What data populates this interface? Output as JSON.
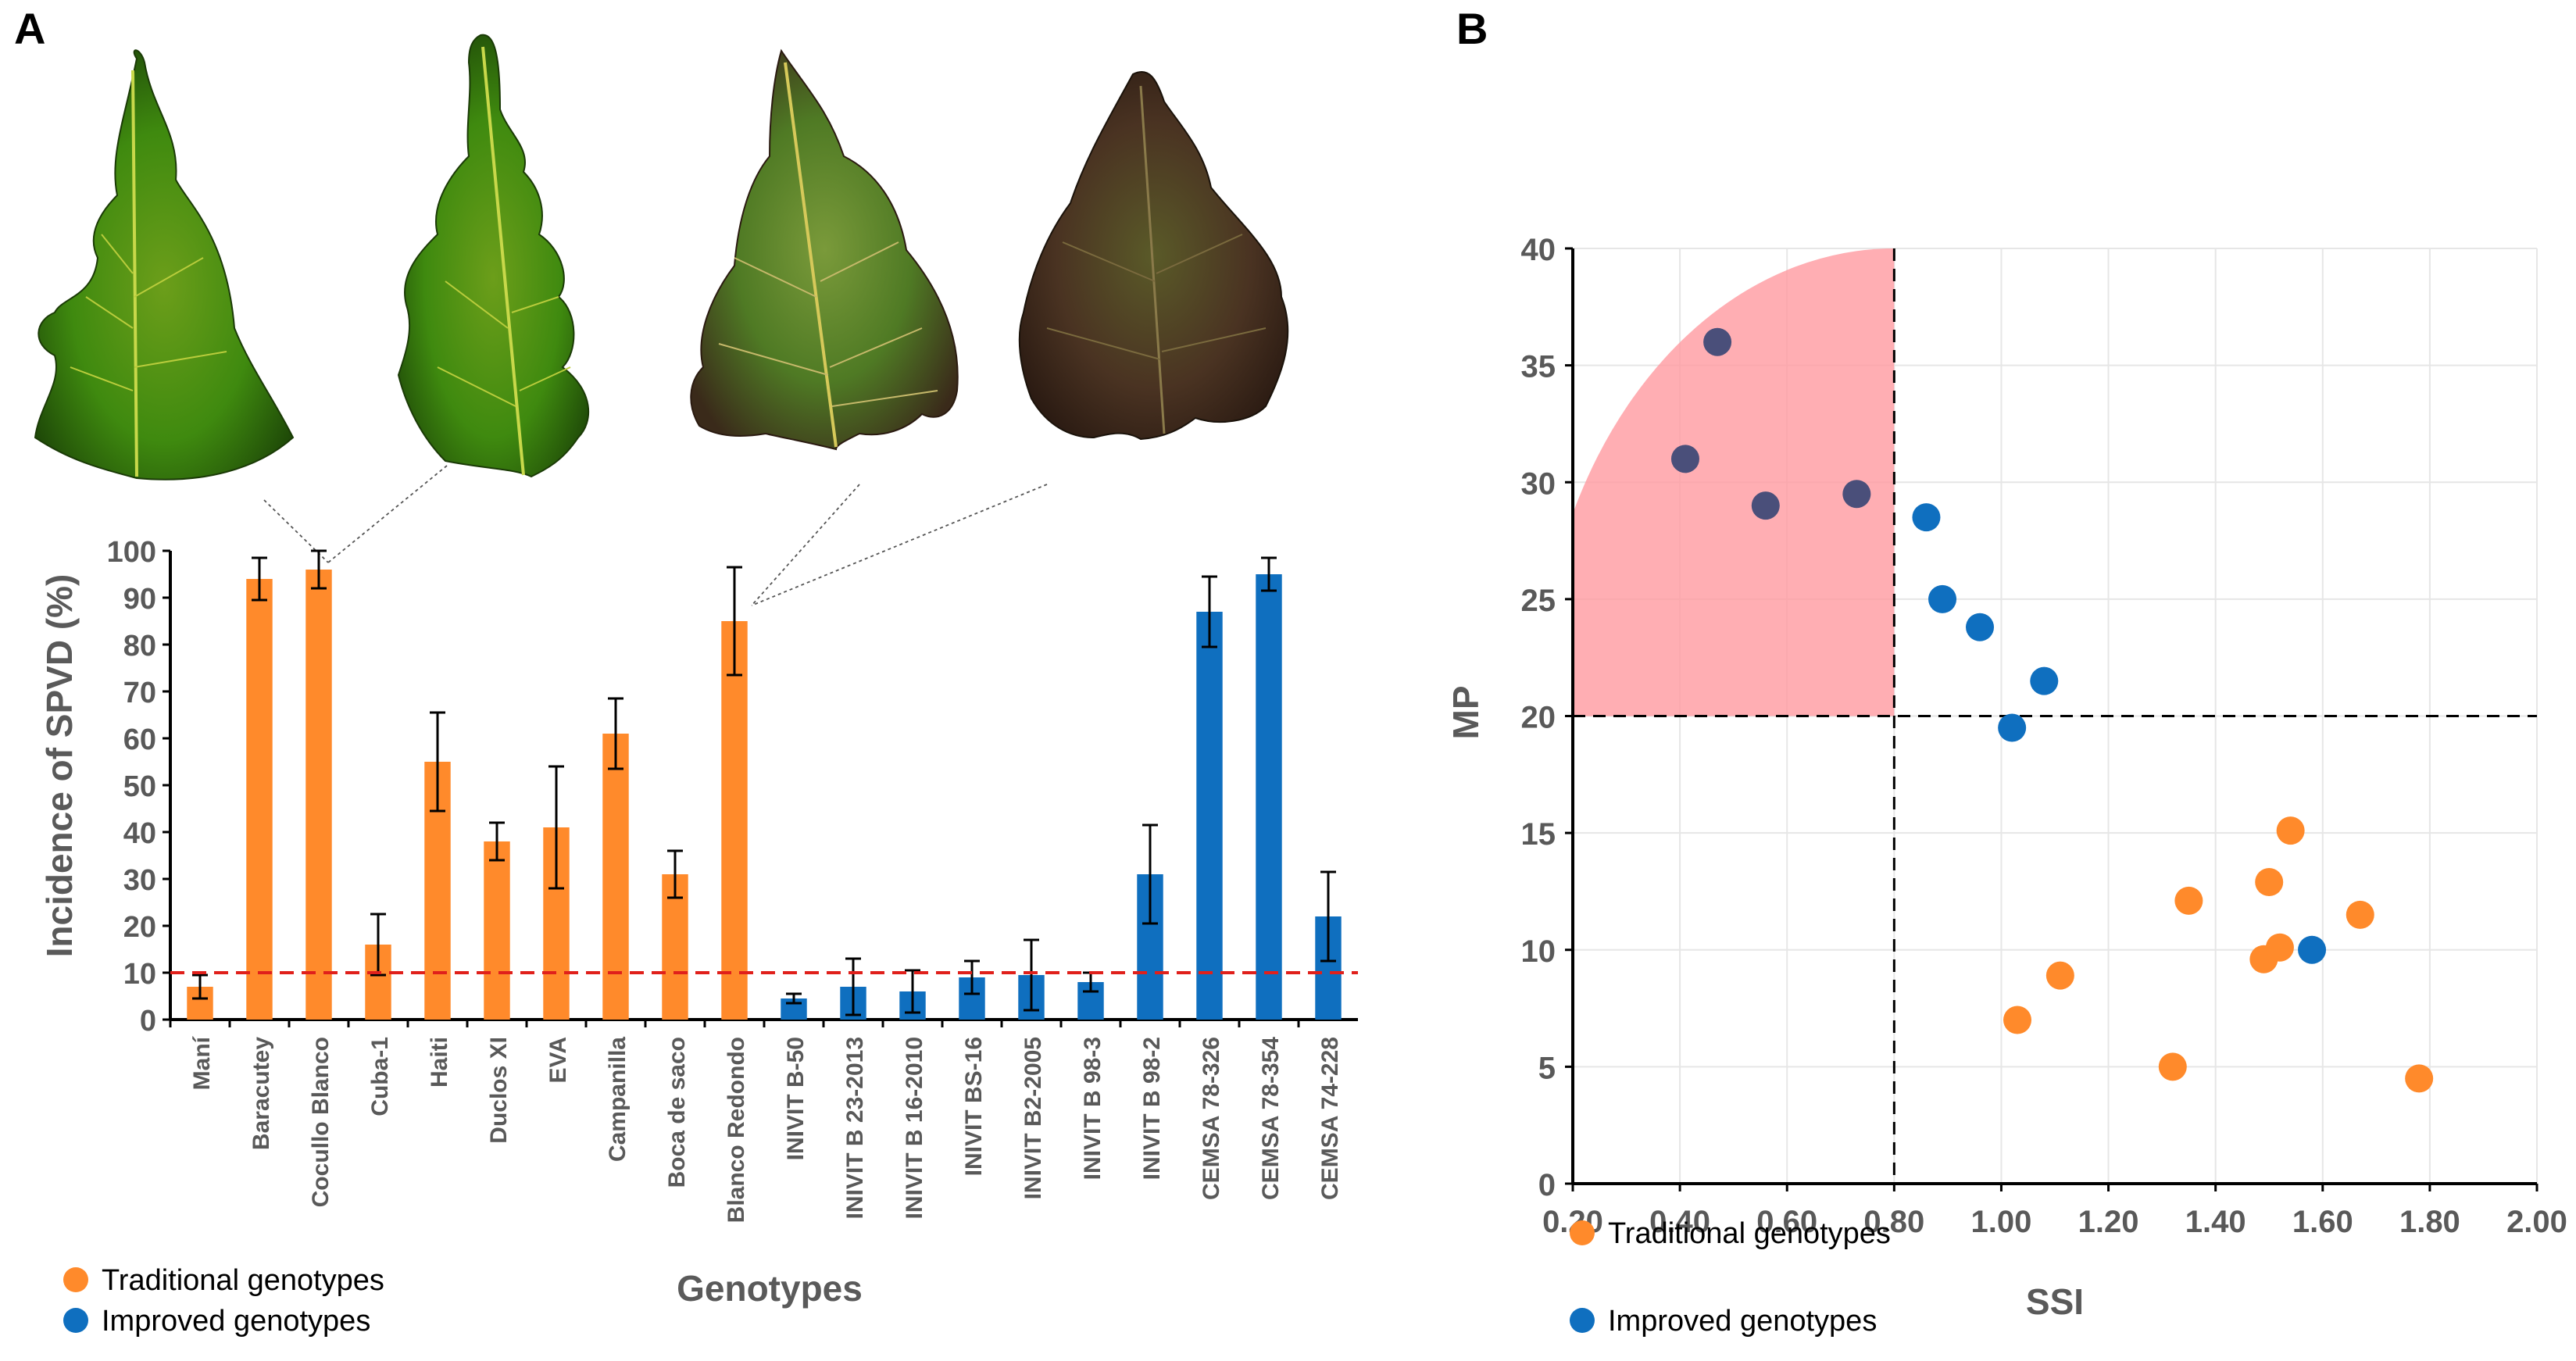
{
  "panels": {
    "a_label": "A",
    "b_label": "B"
  },
  "colors": {
    "traditional": "#FF8A2B",
    "improved": "#0F6FBF",
    "threshold": "#E0201B",
    "shade": "#FF9AA0",
    "highlight_dot": "#4A4F7A"
  },
  "legend": {
    "traditional": "Traditional genotypes",
    "improved": "Improved genotypes"
  },
  "leaf_photos": [
    "leaf-photo-cocullo-blanco-1",
    "leaf-photo-cocullo-blanco-2",
    "leaf-photo-blanco-redondo-1",
    "leaf-photo-blanco-redondo-2"
  ],
  "chart_data": [
    {
      "type": "bar",
      "panel": "A",
      "ylabel": "Incidence of SPVD (%)",
      "xlabel": "Genotypes",
      "ylim": [
        0,
        100
      ],
      "yticks": [
        0,
        10,
        20,
        30,
        40,
        50,
        60,
        70,
        80,
        90,
        100
      ],
      "threshold": 10,
      "categories": [
        "Maní",
        "Baracutey",
        "Cocullo Blanco",
        "Cuba-1",
        "Haiti",
        "Duclos XI",
        "EVA",
        "Campanilla",
        "Boca de saco",
        "Blanco Redondo",
        "INIVIT B-50",
        "INIVIT B 23-2013",
        "INIVIT B 16-2010",
        "INIVIT BS-16",
        "INIVIT B2-2005",
        "INIVIT B 98-3",
        "INIVIT B 98-2",
        "CEMSA 78-326",
        "CEMSA 78-354",
        "CEMSA 74-228"
      ],
      "groups": [
        "traditional",
        "traditional",
        "traditional",
        "traditional",
        "traditional",
        "traditional",
        "traditional",
        "traditional",
        "traditional",
        "traditional",
        "improved",
        "improved",
        "improved",
        "improved",
        "improved",
        "improved",
        "improved",
        "improved",
        "improved",
        "improved"
      ],
      "values": [
        7,
        94,
        96,
        16,
        55,
        38,
        41,
        61,
        31,
        85,
        4.5,
        7,
        6,
        9,
        9.5,
        8,
        31,
        87,
        95,
        22
      ],
      "errors": [
        2.5,
        4.5,
        4,
        6.5,
        10.5,
        4,
        13,
        7.5,
        5,
        11.5,
        1,
        6,
        4.5,
        3.5,
        7.5,
        2,
        10.5,
        7.5,
        3.5,
        9.5
      ]
    },
    {
      "type": "scatter",
      "panel": "B",
      "xlabel": "SSI",
      "ylabel": "MP",
      "xlim": [
        0.2,
        2.0
      ],
      "ylim": [
        0,
        40
      ],
      "xticks": [
        "0.20",
        "0.40",
        "0.60",
        "0.80",
        "1.00",
        "1.20",
        "1.40",
        "1.60",
        "1.80",
        "2.00"
      ],
      "yticks": [
        0,
        5,
        10,
        15,
        20,
        25,
        30,
        35,
        40
      ],
      "threshold_x": 0.8,
      "threshold_y": 20,
      "series": [
        {
          "name": "Traditional genotypes",
          "group": "traditional",
          "points": [
            [
              1.03,
              7
            ],
            [
              1.11,
              8.9
            ],
            [
              1.32,
              5
            ],
            [
              1.35,
              12.1
            ],
            [
              1.49,
              9.6
            ],
            [
              1.5,
              12.9
            ],
            [
              1.52,
              10.1
            ],
            [
              1.54,
              15.1
            ],
            [
              1.67,
              11.5
            ],
            [
              1.78,
              4.5
            ]
          ]
        },
        {
          "name": "Improved genotypes",
          "group": "improved",
          "points": [
            [
              0.41,
              31
            ],
            [
              0.47,
              36
            ],
            [
              0.56,
              29
            ],
            [
              0.73,
              29.5
            ],
            [
              0.86,
              28.5
            ],
            [
              0.89,
              25
            ],
            [
              0.96,
              23.8
            ],
            [
              1.02,
              19.5
            ],
            [
              1.08,
              21.5
            ],
            [
              1.58,
              10
            ]
          ]
        }
      ]
    }
  ]
}
